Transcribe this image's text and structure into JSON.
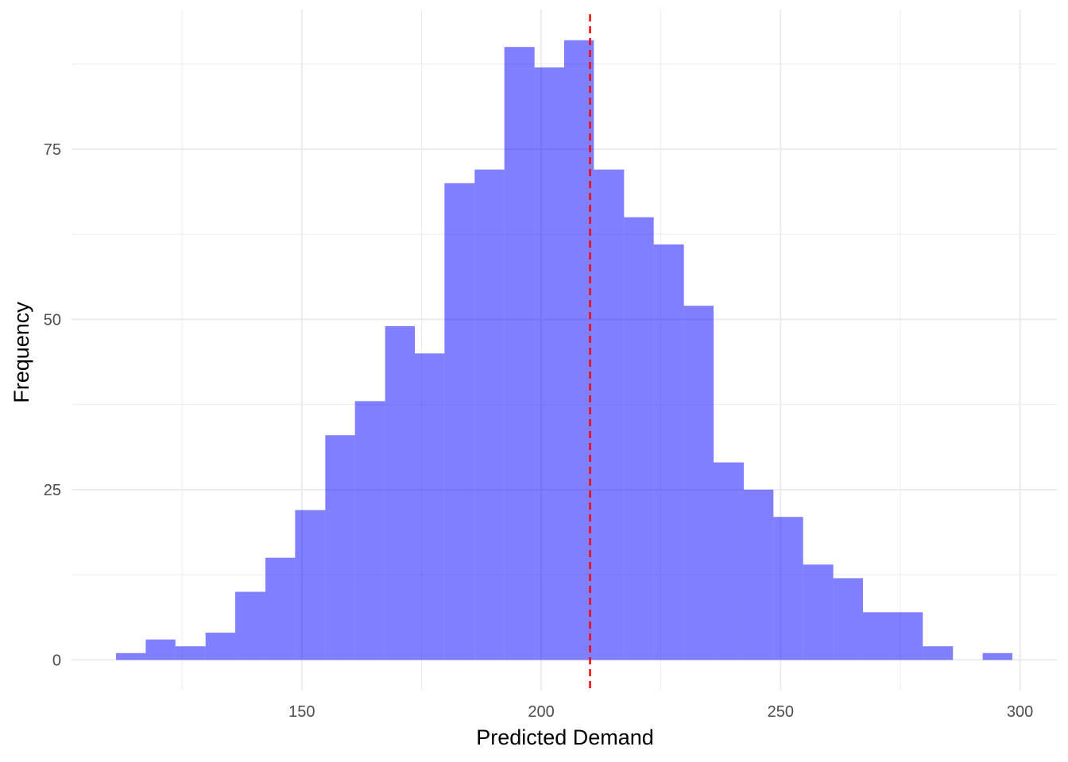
{
  "chart_data": {
    "type": "bar",
    "subtype": "histogram",
    "title": "",
    "xlabel": "Predicted Demand",
    "ylabel": "Frequency",
    "bin_width": 6.24,
    "bins": [
      {
        "x0": 111.2,
        "x1": 117.4,
        "count": 1
      },
      {
        "x0": 117.4,
        "x1": 123.6,
        "count": 3
      },
      {
        "x0": 123.6,
        "x1": 129.9,
        "count": 2
      },
      {
        "x0": 129.9,
        "x1": 136.1,
        "count": 4
      },
      {
        "x0": 136.1,
        "x1": 142.4,
        "count": 10
      },
      {
        "x0": 142.4,
        "x1": 148.6,
        "count": 15
      },
      {
        "x0": 148.6,
        "x1": 154.9,
        "count": 22
      },
      {
        "x0": 154.9,
        "x1": 161.1,
        "count": 33
      },
      {
        "x0": 161.1,
        "x1": 167.4,
        "count": 38
      },
      {
        "x0": 167.4,
        "x1": 173.6,
        "count": 49
      },
      {
        "x0": 173.6,
        "x1": 179.8,
        "count": 45
      },
      {
        "x0": 179.8,
        "x1": 186.1,
        "count": 70
      },
      {
        "x0": 186.1,
        "x1": 192.3,
        "count": 72
      },
      {
        "x0": 192.3,
        "x1": 198.6,
        "count": 90
      },
      {
        "x0": 198.6,
        "x1": 204.8,
        "count": 87
      },
      {
        "x0": 204.8,
        "x1": 211.0,
        "count": 91
      },
      {
        "x0": 211.0,
        "x1": 217.3,
        "count": 72
      },
      {
        "x0": 217.3,
        "x1": 223.5,
        "count": 65
      },
      {
        "x0": 223.5,
        "x1": 229.8,
        "count": 61
      },
      {
        "x0": 229.8,
        "x1": 236.0,
        "count": 52
      },
      {
        "x0": 236.0,
        "x1": 242.3,
        "count": 29
      },
      {
        "x0": 242.3,
        "x1": 248.5,
        "count": 25
      },
      {
        "x0": 248.5,
        "x1": 254.7,
        "count": 21
      },
      {
        "x0": 254.7,
        "x1": 261.0,
        "count": 14
      },
      {
        "x0": 261.0,
        "x1": 267.2,
        "count": 12
      },
      {
        "x0": 267.2,
        "x1": 273.5,
        "count": 7
      },
      {
        "x0": 273.5,
        "x1": 279.7,
        "count": 7
      },
      {
        "x0": 279.7,
        "x1": 286.0,
        "count": 2
      },
      {
        "x0": 286.0,
        "x1": 292.2,
        "count": 0
      },
      {
        "x0": 292.2,
        "x1": 298.4,
        "count": 1
      }
    ],
    "reference_line": {
      "x": 210.2,
      "style": "dashed",
      "color": "#ff0000"
    },
    "xlim": [
      101.9,
      307.7
    ],
    "ylim": [
      -4.5,
      95.5
    ],
    "x_ticks": [
      150,
      200,
      250,
      300
    ],
    "x_tick_labels": [
      "150",
      "200",
      "250",
      "300"
    ],
    "x_minor_ticks": [
      125,
      175,
      225,
      275
    ],
    "y_ticks": [
      0,
      25,
      50,
      75
    ],
    "y_tick_labels": [
      "0",
      "25",
      "50",
      "75"
    ],
    "y_minor_ticks": [
      12.5,
      37.5,
      62.5,
      87.5
    ],
    "grid": true,
    "bar_color": "#0000ff",
    "bar_opacity": 0.5,
    "grid_color": "#ebebeb",
    "legend": "none"
  }
}
